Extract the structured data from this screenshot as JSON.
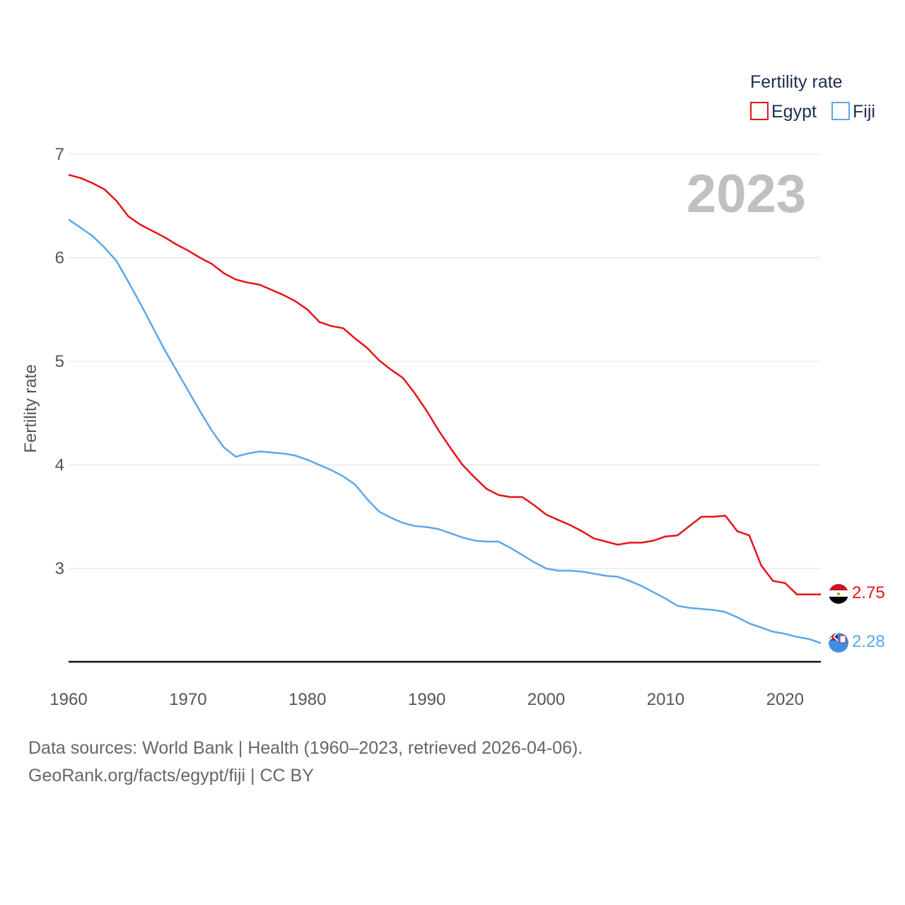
{
  "chart_data": {
    "type": "line",
    "title": "",
    "ylabel": "Fertility rate",
    "xlabel": "",
    "xlim": [
      1960,
      2023
    ],
    "ylim": [
      2.1,
      7
    ],
    "yticks": [
      3,
      4,
      5,
      6,
      7
    ],
    "xticks": [
      1960,
      1970,
      1980,
      1990,
      2000,
      2010,
      2020
    ],
    "grid": true,
    "legend": {
      "title": "Fertility rate",
      "position": "top-right"
    },
    "year_label": "2023",
    "x": [
      1960,
      1961,
      1962,
      1963,
      1964,
      1965,
      1966,
      1967,
      1968,
      1969,
      1970,
      1971,
      1972,
      1973,
      1974,
      1975,
      1976,
      1977,
      1978,
      1979,
      1980,
      1981,
      1982,
      1983,
      1984,
      1985,
      1986,
      1987,
      1988,
      1989,
      1990,
      1991,
      1992,
      1993,
      1994,
      1995,
      1996,
      1997,
      1998,
      1999,
      2000,
      2001,
      2002,
      2003,
      2004,
      2005,
      2006,
      2007,
      2008,
      2009,
      2010,
      2011,
      2012,
      2013,
      2014,
      2015,
      2016,
      2017,
      2018,
      2019,
      2020,
      2021,
      2022,
      2023
    ],
    "series": [
      {
        "name": "Egypt",
        "color": "#e3141b",
        "end_label": "2.75",
        "values": [
          6.8,
          6.77,
          6.72,
          6.66,
          6.55,
          6.4,
          6.32,
          6.26,
          6.2,
          6.13,
          6.07,
          6.0,
          5.94,
          5.85,
          5.79,
          5.76,
          5.74,
          5.69,
          5.64,
          5.58,
          5.5,
          5.38,
          5.34,
          5.32,
          5.22,
          5.13,
          5.01,
          4.92,
          4.84,
          4.69,
          4.52,
          4.33,
          4.16,
          4.0,
          3.88,
          3.77,
          3.71,
          3.69,
          3.69,
          3.61,
          3.52,
          3.47,
          3.42,
          3.36,
          3.29,
          3.26,
          3.23,
          3.25,
          3.25,
          3.27,
          3.31,
          3.32,
          3.41,
          3.5,
          3.5,
          3.51,
          3.36,
          3.32,
          3.03,
          2.88,
          2.86,
          2.75,
          2.75,
          2.75
        ]
      },
      {
        "name": "Fiji",
        "color": "#5ba8ea",
        "end_label": "2.28",
        "values": [
          6.37,
          6.29,
          6.21,
          6.1,
          5.97,
          5.77,
          5.56,
          5.34,
          5.12,
          4.92,
          4.72,
          4.52,
          4.33,
          4.17,
          4.08,
          4.11,
          4.13,
          4.12,
          4.11,
          4.09,
          4.05,
          4.0,
          3.95,
          3.89,
          3.81,
          3.67,
          3.55,
          3.49,
          3.44,
          3.41,
          3.4,
          3.38,
          3.34,
          3.3,
          3.27,
          3.26,
          3.26,
          3.2,
          3.13,
          3.06,
          3.0,
          2.98,
          2.98,
          2.97,
          2.95,
          2.93,
          2.92,
          2.88,
          2.83,
          2.77,
          2.71,
          2.64,
          2.62,
          2.61,
          2.6,
          2.58,
          2.53,
          2.47,
          2.43,
          2.39,
          2.37,
          2.34,
          2.32,
          2.28
        ]
      }
    ]
  },
  "footer": {
    "line1": "Data sources: World Bank | Health (1960–2023, retrieved 2026-04-06).",
    "line2": "GeoRank.org/facts/egypt/fiji | CC BY"
  }
}
